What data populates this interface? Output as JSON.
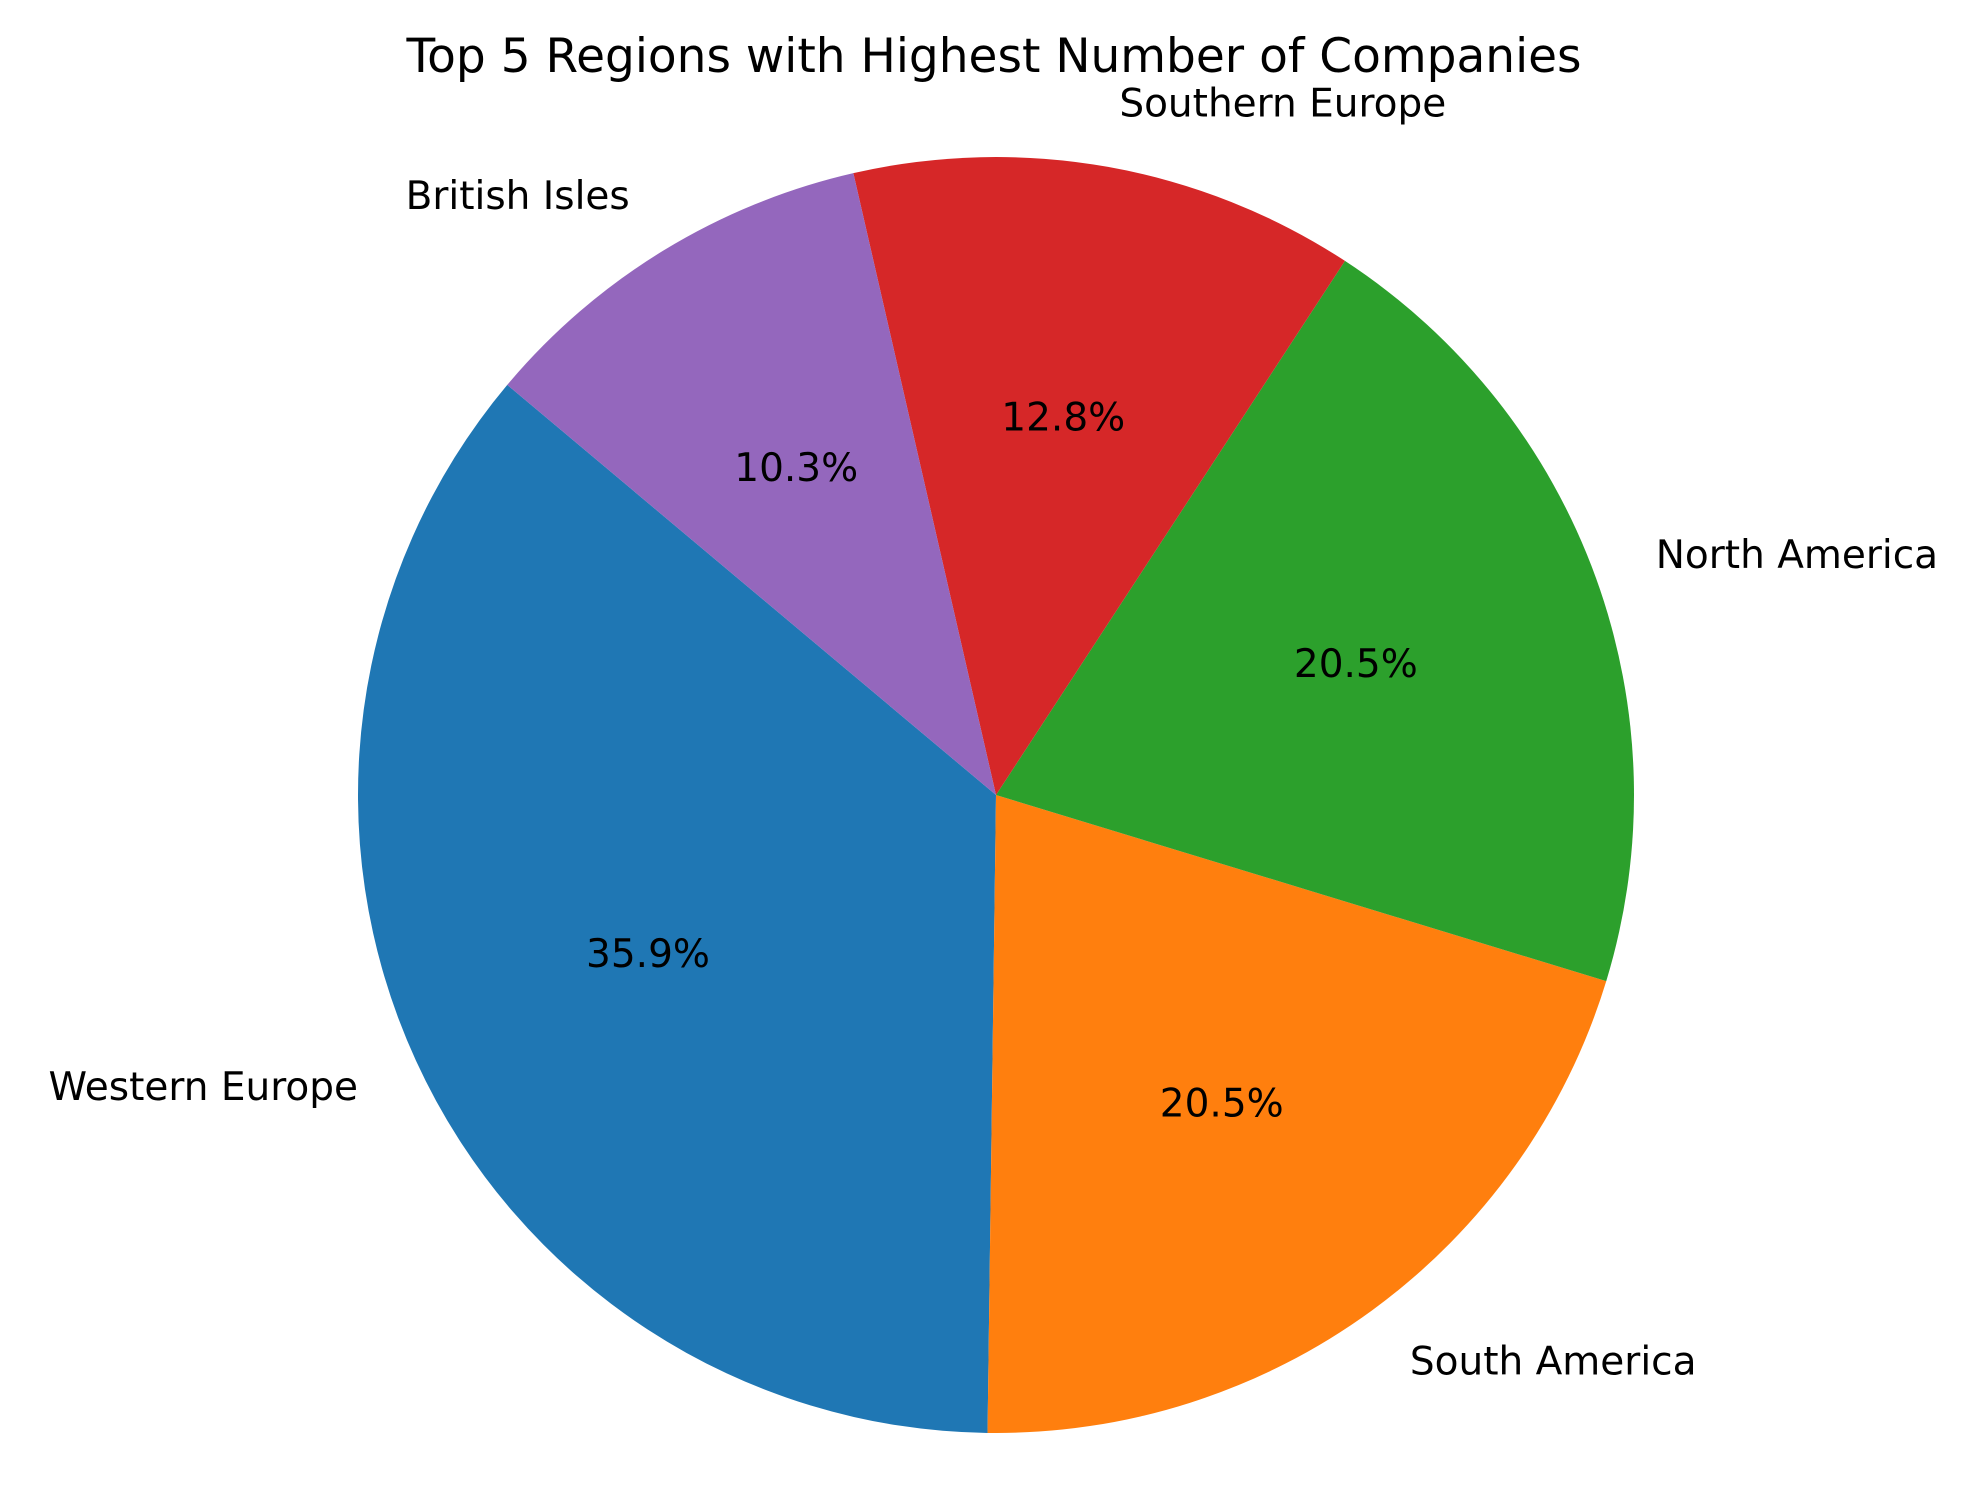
{
  "chart_data": {
    "type": "pie",
    "title": "Top 5 Regions with Highest Number of Companies",
    "categories": [
      "Western Europe",
      "South America",
      "North America",
      "Southern Europe",
      "British Isles"
    ],
    "values": [
      35.9,
      20.5,
      20.5,
      12.8,
      10.3
    ],
    "value_labels": [
      "35.9%",
      "20.5%",
      "20.5%",
      "12.8%",
      "10.3%"
    ],
    "colors": [
      "#1f77b4",
      "#ff7f0e",
      "#2ca02c",
      "#d62728",
      "#9467bd"
    ],
    "start_angle_deg": 140,
    "direction": "counterclockwise",
    "legend": "none"
  }
}
